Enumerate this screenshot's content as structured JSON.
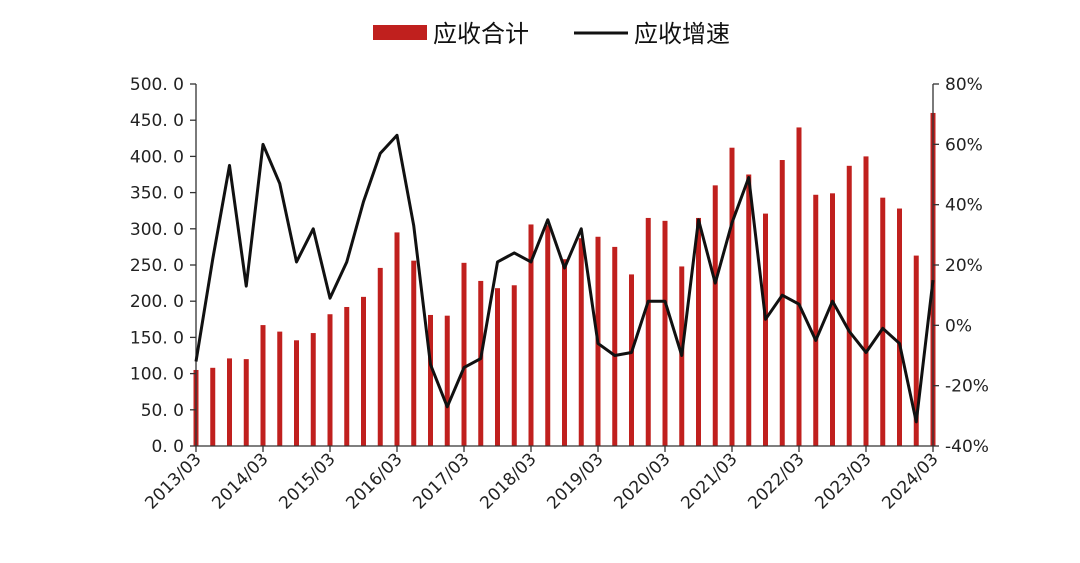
{
  "chart_data": {
    "type": "bar",
    "series": [
      {
        "name": "应收合计",
        "type": "bar",
        "axis": "left",
        "color": "#c0201e",
        "values": [
          105,
          108,
          121,
          120,
          167,
          158,
          146,
          156,
          182,
          192,
          206,
          246,
          295,
          256,
          181,
          180,
          253,
          228,
          218,
          222,
          306,
          305,
          258,
          287,
          289,
          275,
          237,
          315,
          311,
          248,
          315,
          360,
          412,
          375,
          321,
          395,
          440,
          347,
          349,
          387,
          400,
          343,
          328,
          263,
          460
        ]
      },
      {
        "name": "应收增速",
        "type": "line",
        "axis": "right",
        "color": "#111111",
        "values": [
          -12,
          22,
          53,
          13,
          60,
          47,
          21,
          32,
          9,
          21,
          41,
          57,
          63,
          33,
          -13,
          -27,
          -14,
          -11,
          21,
          24,
          21,
          35,
          19,
          32,
          -6,
          -10,
          -9,
          8,
          8,
          -10,
          35,
          14,
          34,
          49,
          2,
          10,
          7,
          -5,
          8,
          -2,
          -9,
          -1,
          -6,
          -32,
          15
        ]
      }
    ],
    "x_tick_labels": [
      "2013/03",
      "2014/03",
      "2015/03",
      "2016/03",
      "2017/03",
      "2018/03",
      "2019/03",
      "2020/03",
      "2021/03",
      "2022/03",
      "2023/03",
      "2024/03"
    ],
    "y_left": {
      "ylim": [
        0,
        500
      ],
      "tick_labels": [
        "500. 0",
        "450. 0",
        "400. 0",
        "350. 0",
        "300. 0",
        "250. 0",
        "200. 0",
        "150. 0",
        "100. 0",
        "50. 0",
        "0. 0"
      ]
    },
    "y_right": {
      "ylim": [
        -40,
        80
      ],
      "tick_labels": [
        "80%",
        "60%",
        "40%",
        "20%",
        "0%",
        "-20%",
        "-40%"
      ]
    },
    "legend_position": "top-center",
    "grid": false
  }
}
